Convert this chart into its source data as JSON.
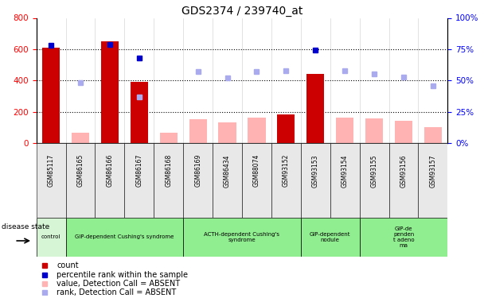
{
  "title": "GDS2374 / 239740_at",
  "samples": [
    "GSM85117",
    "GSM86165",
    "GSM86166",
    "GSM86167",
    "GSM86168",
    "GSM86169",
    "GSM86434",
    "GSM88074",
    "GSM93152",
    "GSM93153",
    "GSM93154",
    "GSM93155",
    "GSM93156",
    "GSM93157"
  ],
  "count_values": [
    610,
    null,
    650,
    390,
    null,
    null,
    null,
    null,
    185,
    440,
    null,
    null,
    null,
    null
  ],
  "count_absent_values": [
    null,
    65,
    null,
    null,
    65,
    150,
    130,
    165,
    null,
    null,
    165,
    155,
    140,
    100
  ],
  "rank_values": [
    78,
    null,
    79,
    68,
    null,
    null,
    null,
    null,
    null,
    74,
    null,
    null,
    null,
    null
  ],
  "rank_absent_values": [
    null,
    48,
    null,
    37,
    null,
    57,
    52,
    57,
    58,
    null,
    58,
    55,
    53,
    46
  ],
  "group_configs": [
    {
      "label": "control",
      "cols": [
        0
      ],
      "color": "#d5f5d5"
    },
    {
      "label": "GIP-dependent Cushing's syndrome",
      "cols": [
        1,
        2,
        3,
        4
      ],
      "color": "#90ee90"
    },
    {
      "label": "ACTH-dependent Cushing's\nsyndrome",
      "cols": [
        5,
        6,
        7,
        8
      ],
      "color": "#90ee90"
    },
    {
      "label": "GIP-dependent\nnodule",
      "cols": [
        9,
        10
      ],
      "color": "#90ee90"
    },
    {
      "label": "GIP-de\npenden\nt adeno\nma",
      "cols": [
        11,
        12,
        13
      ],
      "color": "#90ee90"
    }
  ],
  "left_ylim": [
    0,
    800
  ],
  "right_ylim": [
    0,
    100
  ],
  "left_yticks": [
    0,
    200,
    400,
    600,
    800
  ],
  "right_yticks": [
    0,
    25,
    50,
    75,
    100
  ],
  "right_yticklabels": [
    "0%",
    "25%",
    "50%",
    "75%",
    "100%"
  ],
  "bar_color_count": "#cc0000",
  "bar_color_absent": "#ffb3b3",
  "dot_color_rank": "#0000cc",
  "dot_color_rank_absent": "#aaaaee",
  "legend": [
    {
      "color": "#cc0000",
      "label": "count",
      "marker": "s"
    },
    {
      "color": "#0000cc",
      "label": "percentile rank within the sample",
      "marker": "s"
    },
    {
      "color": "#ffb3b3",
      "label": "value, Detection Call = ABSENT",
      "marker": "s"
    },
    {
      "color": "#aaaaee",
      "label": "rank, Detection Call = ABSENT",
      "marker": "s"
    }
  ]
}
